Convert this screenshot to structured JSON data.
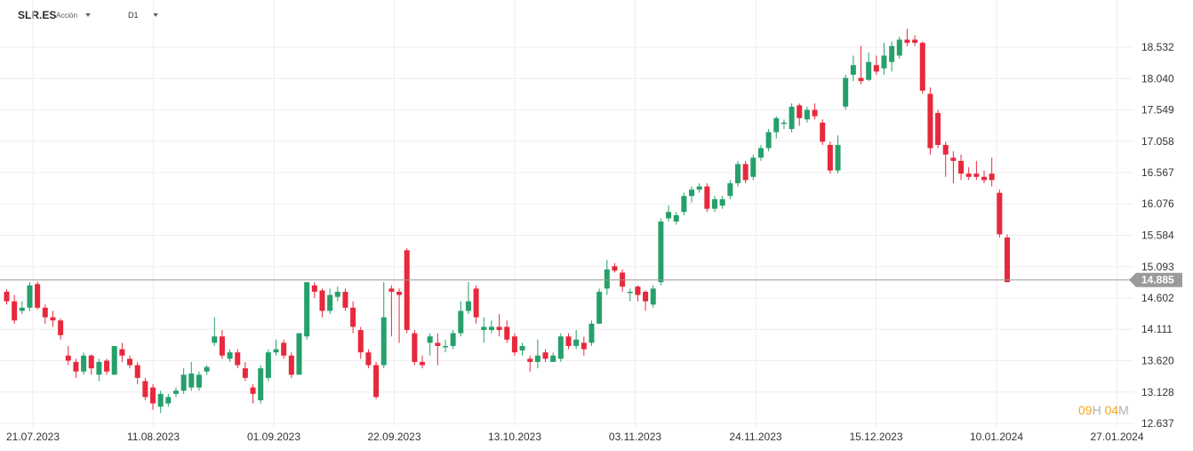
{
  "header": {
    "symbol": "SLR.ES",
    "instrument_type": "Acción",
    "timeframe": "D1"
  },
  "countdown": {
    "hours": "09",
    "h_unit": "H",
    "minutes": "04",
    "m_unit": "M"
  },
  "colors": {
    "up": "#26a06b",
    "down": "#e8283c",
    "grid": "#eeeeee",
    "price_line": "#999999",
    "price_badge": "#9a9a9a",
    "countdown": "#f5a623"
  },
  "chart_data": {
    "type": "candlestick",
    "x_labels": [
      "21.07.2023",
      "11.08.2023",
      "01.09.2023",
      "22.09.2023",
      "13.10.2023",
      "03.11.2023",
      "24.11.2023",
      "15.12.2023",
      "10.01.2024",
      "27.01.2024"
    ],
    "y_ticks": [
      18.532,
      18.04,
      17.549,
      17.058,
      16.567,
      16.076,
      15.584,
      15.093,
      14.602,
      14.111,
      13.62,
      13.128,
      12.637
    ],
    "ylim": [
      12.637,
      18.532
    ],
    "grid": true,
    "current_price": 14.885,
    "candles": [
      [
        14.7,
        14.55,
        14.74,
        14.5
      ],
      [
        14.55,
        14.25,
        14.65,
        14.2
      ],
      [
        14.4,
        14.45,
        14.55,
        14.35
      ],
      [
        14.45,
        14.8,
        14.85,
        14.4
      ],
      [
        14.82,
        14.45,
        14.86,
        14.42
      ],
      [
        14.45,
        14.3,
        14.5,
        14.2
      ],
      [
        14.3,
        14.25,
        14.4,
        14.15
      ],
      [
        14.25,
        14.02,
        14.28,
        13.95
      ],
      [
        13.7,
        13.62,
        13.85,
        13.55
      ],
      [
        13.6,
        13.45,
        13.65,
        13.35
      ],
      [
        13.45,
        13.7,
        13.75,
        13.4
      ],
      [
        13.7,
        13.5,
        13.72,
        13.4
      ],
      [
        13.4,
        13.6,
        13.65,
        13.3
      ],
      [
        13.62,
        13.45,
        13.65,
        13.4
      ],
      [
        13.4,
        13.85,
        13.85,
        13.4
      ],
      [
        13.8,
        13.7,
        13.9,
        13.6
      ],
      [
        13.65,
        13.55,
        13.7,
        13.5
      ],
      [
        13.55,
        13.35,
        13.6,
        13.25
      ],
      [
        13.3,
        13.05,
        13.35,
        13.0
      ],
      [
        13.2,
        12.95,
        13.25,
        12.85
      ],
      [
        12.9,
        13.1,
        13.15,
        12.8
      ],
      [
        12.95,
        13.05,
        13.1,
        12.9
      ],
      [
        13.1,
        13.15,
        13.2,
        13.05
      ],
      [
        13.15,
        13.4,
        13.5,
        13.1
      ],
      [
        13.2,
        13.42,
        13.6,
        13.15
      ],
      [
        13.2,
        13.4,
        13.45,
        13.15
      ],
      [
        13.45,
        13.52,
        13.55,
        13.4
      ],
      [
        13.9,
        14.0,
        14.3,
        13.85
      ],
      [
        14.0,
        13.7,
        14.1,
        13.65
      ],
      [
        13.65,
        13.75,
        13.8,
        13.6
      ],
      [
        13.75,
        13.55,
        13.8,
        13.5
      ],
      [
        13.5,
        13.35,
        13.6,
        13.3
      ],
      [
        13.2,
        13.1,
        13.25,
        12.95
      ],
      [
        13.0,
        13.5,
        13.55,
        12.95
      ],
      [
        13.35,
        13.75,
        13.8,
        13.3
      ],
      [
        13.75,
        13.8,
        13.95,
        13.7
      ],
      [
        13.9,
        13.7,
        13.95,
        13.65
      ],
      [
        13.7,
        13.4,
        13.75,
        13.35
      ],
      [
        13.4,
        14.05,
        14.05,
        13.4
      ],
      [
        14.0,
        14.85,
        14.85,
        13.95
      ],
      [
        14.8,
        14.7,
        14.85,
        14.6
      ],
      [
        14.72,
        14.4,
        14.75,
        14.3
      ],
      [
        14.4,
        14.65,
        14.75,
        14.35
      ],
      [
        14.62,
        14.7,
        14.78,
        14.55
      ],
      [
        14.7,
        14.45,
        14.75,
        14.4
      ],
      [
        14.45,
        14.15,
        14.55,
        14.05
      ],
      [
        14.1,
        13.75,
        14.15,
        13.65
      ],
      [
        13.75,
        13.55,
        13.8,
        13.5
      ],
      [
        13.55,
        13.05,
        13.6,
        13.02
      ],
      [
        13.55,
        14.3,
        14.85,
        13.5
      ],
      [
        14.75,
        14.7,
        14.8,
        14.0
      ],
      [
        14.7,
        14.65,
        14.75,
        13.9
      ],
      [
        15.35,
        14.1,
        15.38,
        14.05
      ],
      [
        14.05,
        13.6,
        14.1,
        13.55
      ],
      [
        13.6,
        13.55,
        13.7,
        13.5
      ],
      [
        13.9,
        14.0,
        14.05,
        13.7
      ],
      [
        13.9,
        13.85,
        14.05,
        13.55
      ],
      [
        13.85,
        13.85,
        13.95,
        13.75
      ],
      [
        13.85,
        14.05,
        14.1,
        13.8
      ],
      [
        14.05,
        14.4,
        14.55,
        14.0
      ],
      [
        14.4,
        14.55,
        14.85,
        14.35
      ],
      [
        14.75,
        14.3,
        14.8,
        14.2
      ],
      [
        14.1,
        14.15,
        14.3,
        13.9
      ],
      [
        14.1,
        14.15,
        14.25,
        14.05
      ],
      [
        14.15,
        14.1,
        14.35,
        14.0
      ],
      [
        14.15,
        13.95,
        14.25,
        13.9
      ],
      [
        14.0,
        13.75,
        14.05,
        13.7
      ],
      [
        13.78,
        13.85,
        13.9,
        13.7
      ],
      [
        13.65,
        13.6,
        13.7,
        13.45
      ],
      [
        13.6,
        13.7,
        13.95,
        13.5
      ],
      [
        13.75,
        13.65,
        13.8,
        13.6
      ],
      [
        13.6,
        13.7,
        13.75,
        13.65
      ],
      [
        13.65,
        14.0,
        14.05,
        13.6
      ],
      [
        14.0,
        13.85,
        14.05,
        13.8
      ],
      [
        13.85,
        13.95,
        14.1,
        13.8
      ],
      [
        13.9,
        13.8,
        14.0,
        13.7
      ],
      [
        13.9,
        14.2,
        14.25,
        13.85
      ],
      [
        14.2,
        14.7,
        14.75,
        14.2
      ],
      [
        14.75,
        15.05,
        15.2,
        14.65
      ],
      [
        15.1,
        15.03,
        15.15,
        15.0
      ],
      [
        15.0,
        14.78,
        15.05,
        14.7
      ],
      [
        14.7,
        14.7,
        14.75,
        14.55
      ],
      [
        14.78,
        14.65,
        14.8,
        14.55
      ],
      [
        14.7,
        14.55,
        14.72,
        14.4
      ],
      [
        14.5,
        14.75,
        14.8,
        14.45
      ],
      [
        14.85,
        15.8,
        15.85,
        14.8
      ],
      [
        15.85,
        15.95,
        16.05,
        15.8
      ],
      [
        15.8,
        15.9,
        15.95,
        15.75
      ],
      [
        15.95,
        16.2,
        16.25,
        15.9
      ],
      [
        16.2,
        16.3,
        16.35,
        16.1
      ],
      [
        16.3,
        16.35,
        16.4,
        16.25
      ],
      [
        16.35,
        16.0,
        16.4,
        15.95
      ],
      [
        16.0,
        16.15,
        16.2,
        15.95
      ],
      [
        16.05,
        16.15,
        16.2,
        16.0
      ],
      [
        16.2,
        16.4,
        16.45,
        16.15
      ],
      [
        16.4,
        16.7,
        16.75,
        16.35
      ],
      [
        16.7,
        16.45,
        16.75,
        16.4
      ],
      [
        16.5,
        16.8,
        16.85,
        16.45
      ],
      [
        16.8,
        16.95,
        17.0,
        16.75
      ],
      [
        16.95,
        17.2,
        17.25,
        16.9
      ],
      [
        17.2,
        17.42,
        17.45,
        17.1
      ],
      [
        17.35,
        17.35,
        17.4,
        17.25
      ],
      [
        17.25,
        17.6,
        17.65,
        17.2
      ],
      [
        17.62,
        17.42,
        17.65,
        17.3
      ],
      [
        17.4,
        17.55,
        17.6,
        17.35
      ],
      [
        17.55,
        17.45,
        17.65,
        17.4
      ],
      [
        17.35,
        17.05,
        17.4,
        17.0
      ],
      [
        17.0,
        16.6,
        17.05,
        16.55
      ],
      [
        16.6,
        17.0,
        17.15,
        16.55
      ],
      [
        17.6,
        18.05,
        18.1,
        17.55
      ],
      [
        18.1,
        18.25,
        18.4,
        18.0
      ],
      [
        18.05,
        18.0,
        18.55,
        17.95
      ],
      [
        18.02,
        18.3,
        18.45,
        18.0
      ],
      [
        18.25,
        18.15,
        18.4,
        18.1
      ],
      [
        18.2,
        18.4,
        18.6,
        18.1
      ],
      [
        18.3,
        18.55,
        18.62,
        18.15
      ],
      [
        18.4,
        18.65,
        18.7,
        18.35
      ],
      [
        18.65,
        18.6,
        18.82,
        18.55
      ],
      [
        18.65,
        18.6,
        18.72,
        18.55
      ],
      [
        18.6,
        17.85,
        18.62,
        17.8
      ],
      [
        17.8,
        16.95,
        17.9,
        16.85
      ],
      [
        17.5,
        17.0,
        17.55,
        16.95
      ],
      [
        17.0,
        16.85,
        17.05,
        16.5
      ],
      [
        16.8,
        16.75,
        16.9,
        16.4
      ],
      [
        16.75,
        16.55,
        16.85,
        16.45
      ],
      [
        16.55,
        16.5,
        16.65,
        16.45
      ],
      [
        16.55,
        16.5,
        16.75,
        16.45
      ],
      [
        16.5,
        16.45,
        16.6,
        16.4
      ],
      [
        16.55,
        16.45,
        16.8,
        16.35
      ],
      [
        16.25,
        15.6,
        16.3,
        15.55
      ],
      [
        15.55,
        14.85,
        15.6,
        14.85
      ]
    ]
  }
}
